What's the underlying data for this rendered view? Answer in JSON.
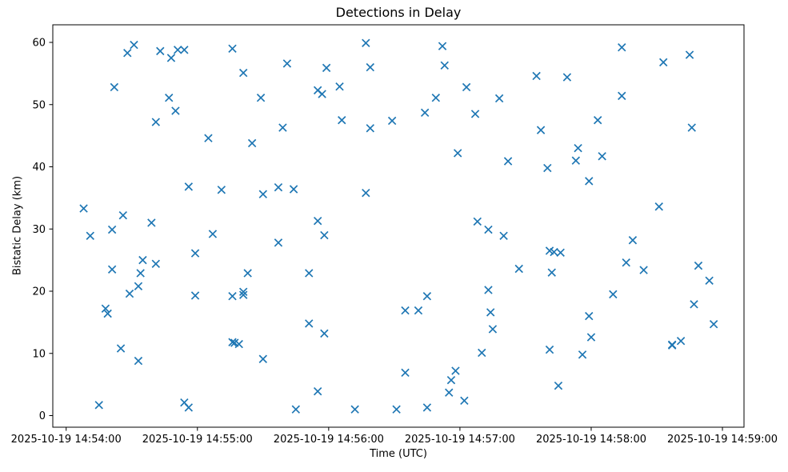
{
  "chart_data": {
    "type": "scatter",
    "title": "Detections in Delay",
    "xlabel": "Time (UTC)",
    "ylabel": "Bistatic Delay (km)",
    "date": "2025-10-19",
    "marker": "x",
    "marker_color": "#1f77b4",
    "axis_color": "#000000",
    "grid": false,
    "legend": "none",
    "x_tick_labels": [
      "2025-10-19 14:54:00",
      "2025-10-19 14:55:00",
      "2025-10-19 14:56:00",
      "2025-10-19 14:57:00",
      "2025-10-19 14:58:00",
      "2025-10-19 14:59:00"
    ],
    "y_ticks": [
      0,
      10,
      20,
      30,
      40,
      50,
      60
    ],
    "xlim": [
      "14:53:54",
      "14:59:10"
    ],
    "ylim": [
      -1.9,
      62.8
    ],
    "points_format": "[time_utc, bistatic_delay_km]",
    "points": [
      [
        "14:54:08",
        33.3
      ],
      [
        "14:54:11",
        28.9
      ],
      [
        "14:54:15",
        1.7
      ],
      [
        "14:54:18",
        17.2
      ],
      [
        "14:54:19",
        16.4
      ],
      [
        "14:54:21",
        29.9
      ],
      [
        "14:54:21",
        23.5
      ],
      [
        "14:54:22",
        52.8
      ],
      [
        "14:54:25",
        10.8
      ],
      [
        "14:54:26",
        32.2
      ],
      [
        "14:54:28",
        58.3
      ],
      [
        "14:54:29",
        19.6
      ],
      [
        "14:54:31",
        59.6
      ],
      [
        "14:54:33",
        20.8
      ],
      [
        "14:54:33",
        8.8
      ],
      [
        "14:54:34",
        22.9
      ],
      [
        "14:54:35",
        25.0
      ],
      [
        "14:54:39",
        31.0
      ],
      [
        "14:54:41",
        47.2
      ],
      [
        "14:54:41",
        24.4
      ],
      [
        "14:54:43",
        58.6
      ],
      [
        "14:54:47",
        51.1
      ],
      [
        "14:54:48",
        57.5
      ],
      [
        "14:54:50",
        49.0
      ],
      [
        "14:54:51",
        58.8
      ],
      [
        "14:54:54",
        58.8
      ],
      [
        "14:54:54",
        2.1
      ],
      [
        "14:54:56",
        36.8
      ],
      [
        "14:54:56",
        1.3
      ],
      [
        "14:54:59",
        26.1
      ],
      [
        "14:54:59",
        19.3
      ],
      [
        "14:55:05",
        44.6
      ],
      [
        "14:55:07",
        29.2
      ],
      [
        "14:55:11",
        36.3
      ],
      [
        "14:55:16",
        59.0
      ],
      [
        "14:55:16",
        19.2
      ],
      [
        "14:55:16",
        11.8
      ],
      [
        "14:55:17",
        11.7
      ],
      [
        "14:55:19",
        11.5
      ],
      [
        "14:55:21",
        55.1
      ],
      [
        "14:55:21",
        19.9
      ],
      [
        "14:55:21",
        19.4
      ],
      [
        "14:55:23",
        22.9
      ],
      [
        "14:55:25",
        43.8
      ],
      [
        "14:55:29",
        51.1
      ],
      [
        "14:55:30",
        35.6
      ],
      [
        "14:55:30",
        9.1
      ],
      [
        "14:55:37",
        36.7
      ],
      [
        "14:55:37",
        27.8
      ],
      [
        "14:55:39",
        46.3
      ],
      [
        "14:55:41",
        56.6
      ],
      [
        "14:55:44",
        36.4
      ],
      [
        "14:55:45",
        1.0
      ],
      [
        "14:55:51",
        22.9
      ],
      [
        "14:55:51",
        14.8
      ],
      [
        "14:55:55",
        52.3
      ],
      [
        "14:55:55",
        31.3
      ],
      [
        "14:55:55",
        3.9
      ],
      [
        "14:55:57",
        51.7
      ],
      [
        "14:55:58",
        29.0
      ],
      [
        "14:55:58",
        13.2
      ],
      [
        "14:55:59",
        55.9
      ],
      [
        "14:56:05",
        52.9
      ],
      [
        "14:56:06",
        47.5
      ],
      [
        "14:56:12",
        1.0
      ],
      [
        "14:56:17",
        59.9
      ],
      [
        "14:56:17",
        35.8
      ],
      [
        "14:56:19",
        56.0
      ],
      [
        "14:56:19",
        46.2
      ],
      [
        "14:56:29",
        47.4
      ],
      [
        "14:56:31",
        1.0
      ],
      [
        "14:56:35",
        16.9
      ],
      [
        "14:56:35",
        6.9
      ],
      [
        "14:56:41",
        16.9
      ],
      [
        "14:56:44",
        48.7
      ],
      [
        "14:56:45",
        19.2
      ],
      [
        "14:56:45",
        1.3
      ],
      [
        "14:56:49",
        51.1
      ],
      [
        "14:56:52",
        59.4
      ],
      [
        "14:56:53",
        56.3
      ],
      [
        "14:56:55",
        3.7
      ],
      [
        "14:56:56",
        5.7
      ],
      [
        "14:56:58",
        7.2
      ],
      [
        "14:56:59",
        42.2
      ],
      [
        "14:57:02",
        2.4
      ],
      [
        "14:57:03",
        52.8
      ],
      [
        "14:57:07",
        48.5
      ],
      [
        "14:57:08",
        31.2
      ],
      [
        "14:57:10",
        10.1
      ],
      [
        "14:57:13",
        29.9
      ],
      [
        "14:57:13",
        20.2
      ],
      [
        "14:57:14",
        16.6
      ],
      [
        "14:57:15",
        13.9
      ],
      [
        "14:57:18",
        51.0
      ],
      [
        "14:57:20",
        28.9
      ],
      [
        "14:57:22",
        40.9
      ],
      [
        "14:57:27",
        23.6
      ],
      [
        "14:57:35",
        54.6
      ],
      [
        "14:57:37",
        45.9
      ],
      [
        "14:57:40",
        39.8
      ],
      [
        "14:57:41",
        26.5
      ],
      [
        "14:57:41",
        10.6
      ],
      [
        "14:57:42",
        23.0
      ],
      [
        "14:57:43",
        26.3
      ],
      [
        "14:57:45",
        4.8
      ],
      [
        "14:57:46",
        26.2
      ],
      [
        "14:57:49",
        54.4
      ],
      [
        "14:57:53",
        41.0
      ],
      [
        "14:57:54",
        43.0
      ],
      [
        "14:57:56",
        9.8
      ],
      [
        "14:57:59",
        37.7
      ],
      [
        "14:57:59",
        16.0
      ],
      [
        "14:58:00",
        12.6
      ],
      [
        "14:58:03",
        47.5
      ],
      [
        "14:58:05",
        41.7
      ],
      [
        "14:58:10",
        19.5
      ],
      [
        "14:58:14",
        59.2
      ],
      [
        "14:58:14",
        51.4
      ],
      [
        "14:58:16",
        24.6
      ],
      [
        "14:58:19",
        28.2
      ],
      [
        "14:58:24",
        23.4
      ],
      [
        "14:58:31",
        33.6
      ],
      [
        "14:58:33",
        56.8
      ],
      [
        "14:58:37",
        11.4
      ],
      [
        "14:58:37",
        11.3
      ],
      [
        "14:58:41",
        12.0
      ],
      [
        "14:58:45",
        58.0
      ],
      [
        "14:58:46",
        46.3
      ],
      [
        "14:58:47",
        17.9
      ],
      [
        "14:58:49",
        24.1
      ],
      [
        "14:58:54",
        21.7
      ],
      [
        "14:58:56",
        14.7
      ]
    ]
  }
}
